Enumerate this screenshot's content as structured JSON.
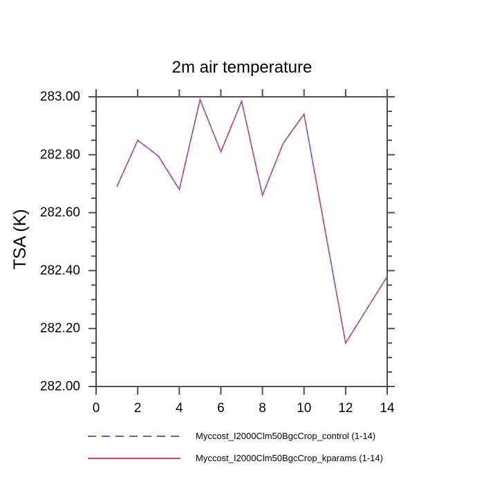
{
  "chart": {
    "title": "2m air temperature",
    "y_axis_label": "TSA (K)",
    "axis_color": "#4f4f4f",
    "text_color": "#000000",
    "background": "#ffffff"
  },
  "chart_data": {
    "type": "line",
    "title": "2m air temperature",
    "xlabel": "",
    "ylabel": "TSA (K)",
    "x": [
      1,
      2,
      3,
      4,
      5,
      6,
      7,
      8,
      9,
      10,
      11,
      12,
      13,
      14
    ],
    "series": [
      {
        "name": "Myccost_I2000Clm50BgcCrop_control (1-14)",
        "color": "#5c5ce0",
        "line_style": "dashed",
        "values": [
          282.69,
          282.85,
          282.795,
          282.68,
          282.99,
          282.81,
          282.985,
          282.66,
          282.84,
          282.94,
          282.545,
          282.15,
          282.265,
          282.38
        ]
      },
      {
        "name": "Myccost_I2000Clm50BgcCrop_kparams (1-14)",
        "color": "#ee4040",
        "line_style": "solid",
        "values": [
          282.69,
          282.85,
          282.795,
          282.68,
          282.99,
          282.81,
          282.985,
          282.66,
          282.84,
          282.94,
          282.545,
          282.15,
          282.265,
          282.38
        ]
      }
    ],
    "xlim": [
      0,
      14
    ],
    "ylim": [
      282.0,
      283.0
    ],
    "xticks": [
      0,
      2,
      4,
      6,
      8,
      10,
      12,
      14
    ],
    "xtick_labels": [
      "0",
      "2",
      "4",
      "6",
      "8",
      "10",
      "12",
      "14"
    ],
    "yticks": [
      283.0,
      282.8,
      282.6,
      282.4,
      282.2,
      282.0
    ],
    "ytick_labels": [
      "283.00",
      "282.80",
      "282.60",
      "282.40",
      "282.20",
      "282.00"
    ],
    "y_minor_step": 0.05,
    "grid": false,
    "legend_position": "bottom"
  }
}
